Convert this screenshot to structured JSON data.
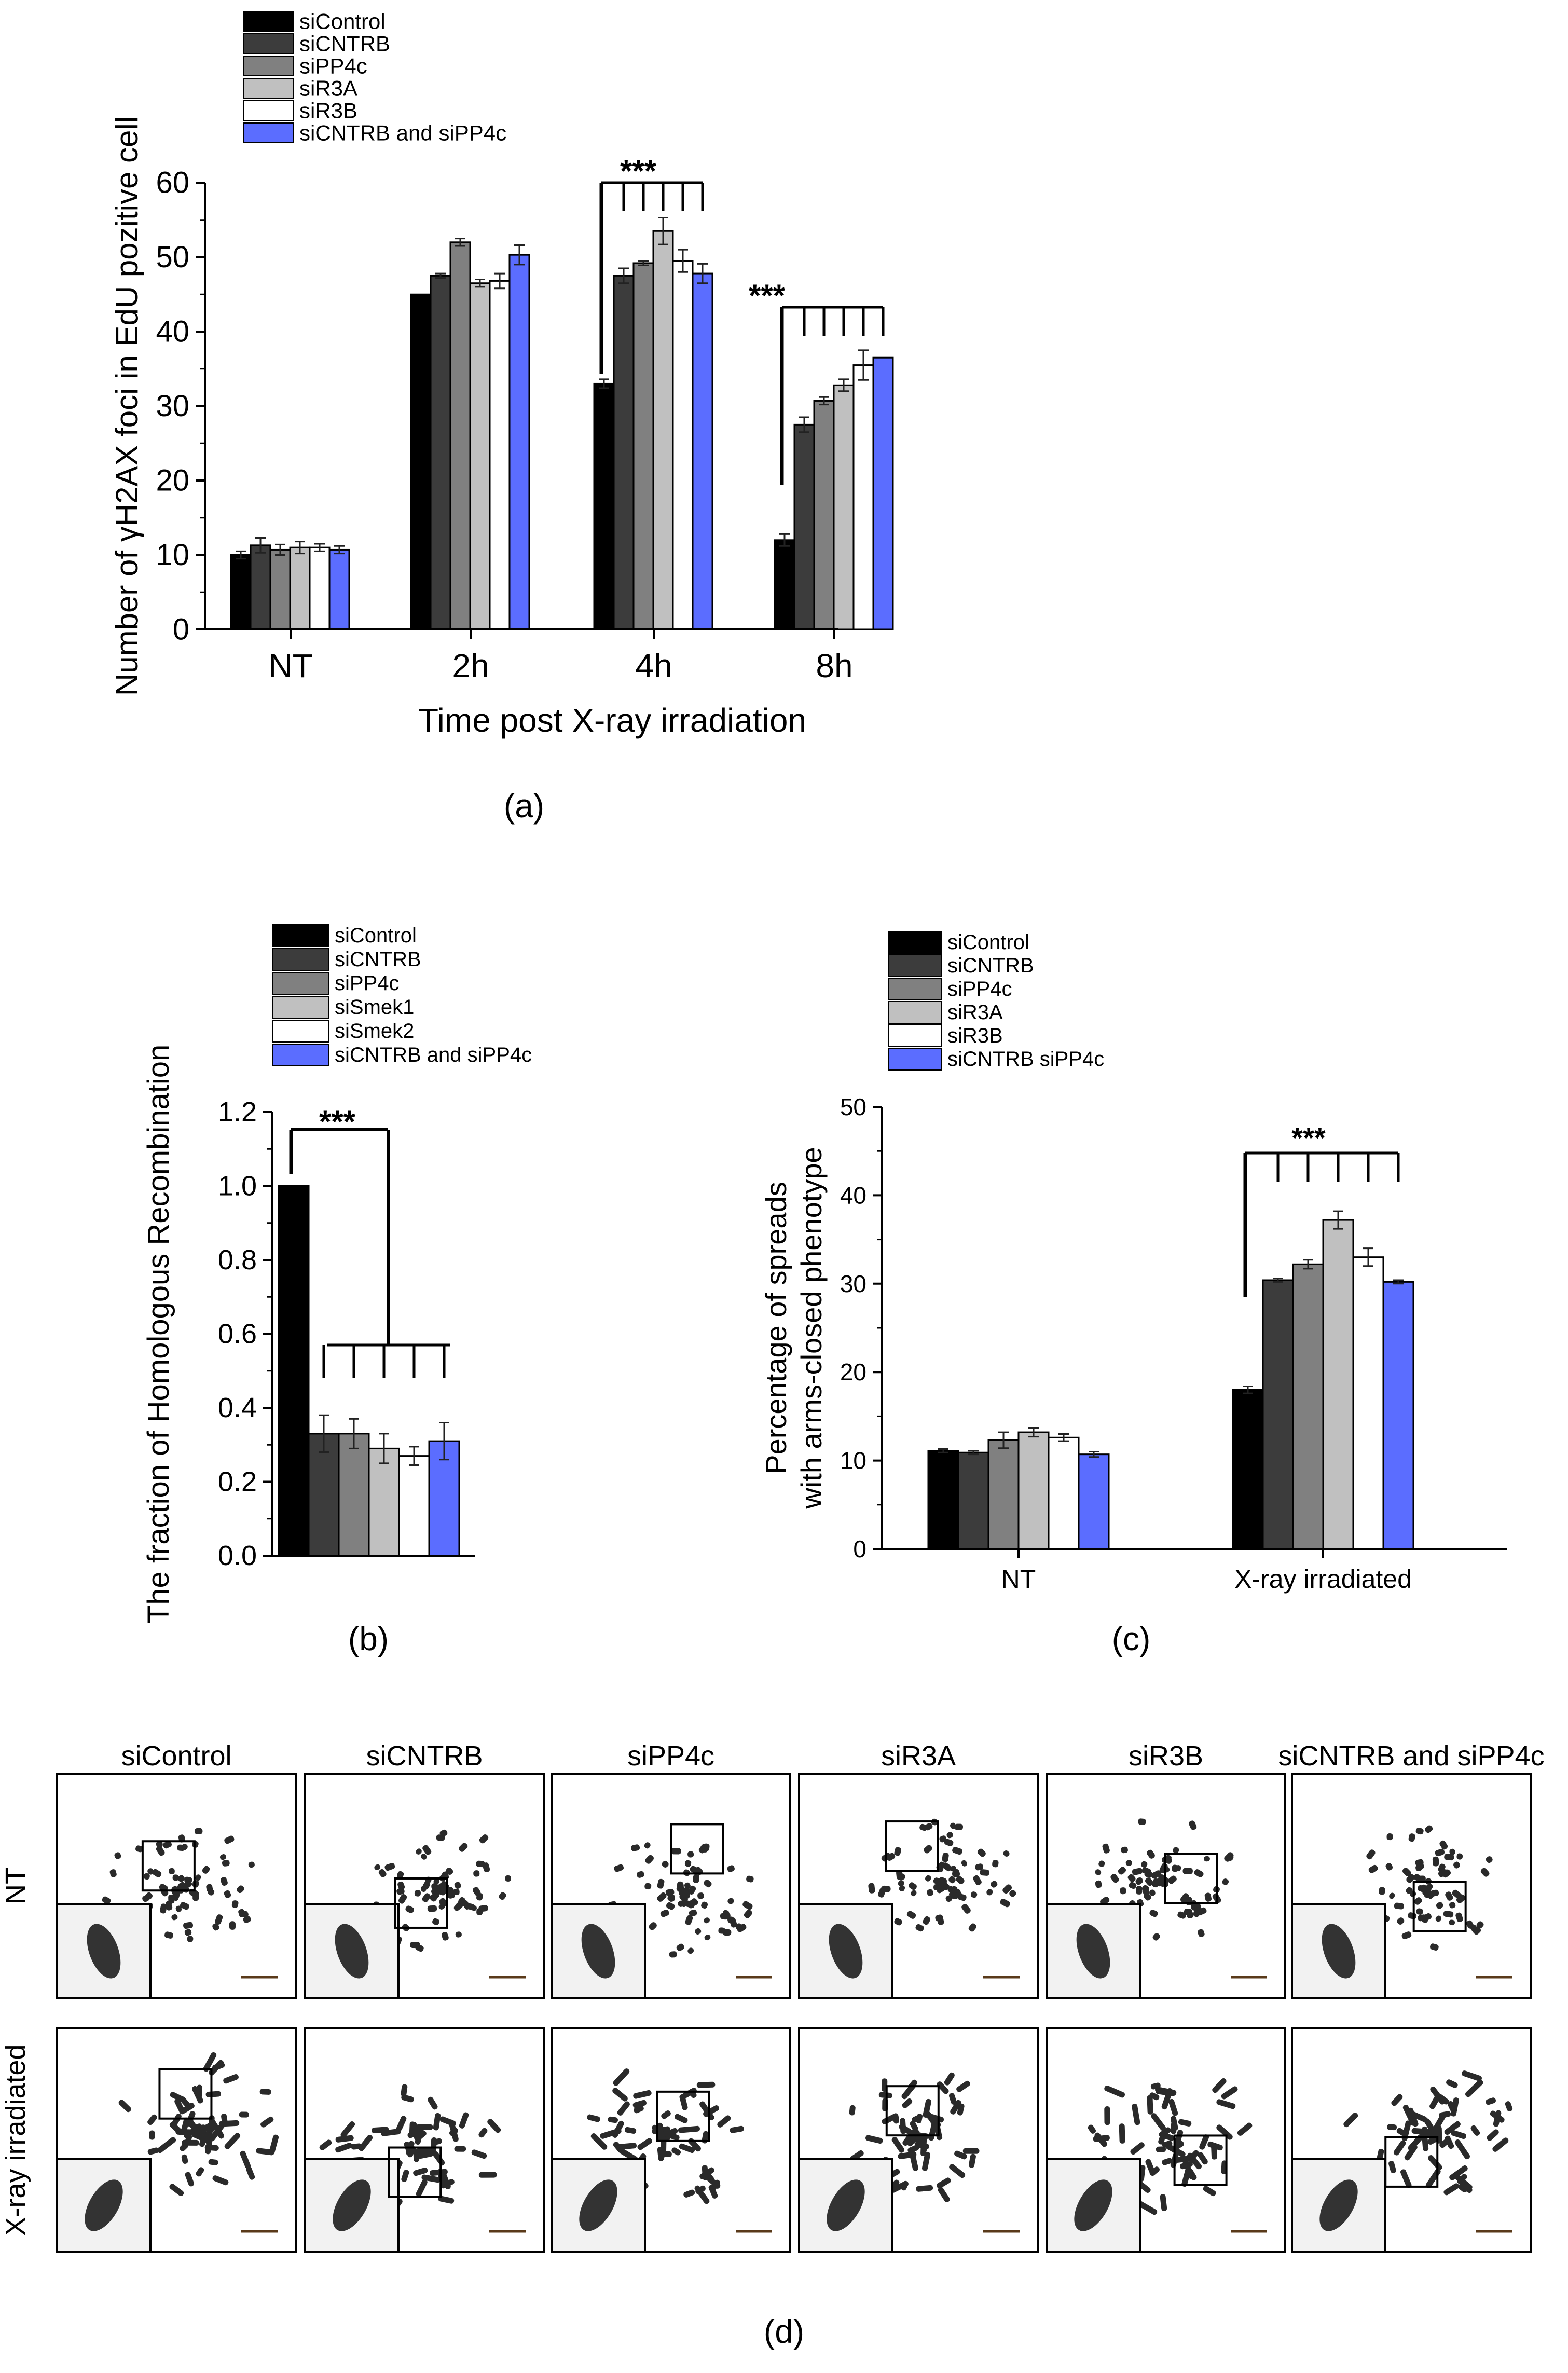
{
  "colors": {
    "siControl": "#000000",
    "siCNTRB": "#3c3c3c",
    "siPP4c": "#808080",
    "siR3A": "#c0c0c0",
    "siR3B": "#ffffff",
    "combo": "#5b6dff"
  },
  "chart_data": [
    {
      "panel_label": "(a)",
      "type": "bar",
      "xlabel": "Time post X-ray irradiation",
      "ylabel": "Number of γH2AX foci in EdU pozitive cell",
      "ylim": [
        0,
        60
      ],
      "yticks": [
        "0",
        "10",
        "20",
        "30",
        "40",
        "50",
        "60"
      ],
      "categories": [
        "NT",
        "2h",
        "4h",
        "8h"
      ],
      "legend": [
        "siControl",
        "siCNTRB",
        "siPP4c",
        "siR3A",
        "siR3B",
        "siCNTRB and siPP4c"
      ],
      "series": [
        {
          "name": "siControl",
          "values": [
            10,
            45,
            33,
            12
          ],
          "errors": [
            0.5,
            0,
            0.6,
            0.8
          ]
        },
        {
          "name": "siCNTRB",
          "values": [
            11.3,
            47.5,
            47.5,
            27.5
          ],
          "errors": [
            1,
            0.3,
            1,
            1
          ]
        },
        {
          "name": "siPP4c",
          "values": [
            10.7,
            52,
            49.2,
            30.7
          ],
          "errors": [
            0.7,
            0.5,
            0.3,
            0.5
          ]
        },
        {
          "name": "siR3A",
          "values": [
            11,
            46.5,
            53.5,
            32.8
          ],
          "errors": [
            0.8,
            0.5,
            1.8,
            0.8
          ]
        },
        {
          "name": "siR3B",
          "values": [
            11,
            46.8,
            49.5,
            35.5
          ],
          "errors": [
            0.5,
            1,
            1.5,
            2
          ]
        },
        {
          "name": "siCNTRB and siPP4c",
          "values": [
            10.7,
            50.3,
            47.8,
            36.5
          ],
          "errors": [
            0.5,
            1.3,
            1.3,
            0
          ]
        }
      ],
      "annotations": [
        {
          "text": "***",
          "category": "4h"
        },
        {
          "text": "***",
          "category": "8h"
        }
      ]
    },
    {
      "panel_label": "(b)",
      "type": "bar",
      "xlabel": "",
      "ylabel": "The fraction of Homologous Recombination",
      "ylim": [
        0,
        1.2
      ],
      "yticks": [
        "0.0",
        "0.2",
        "0.4",
        "0.6",
        "0.8",
        "1.0",
        "1.2"
      ],
      "categories": [
        ""
      ],
      "legend": [
        "siControl",
        "siCNTRB",
        "siPP4c",
        "siSmek1",
        "siSmek2",
        "siCNTRB and siPP4c"
      ],
      "series": [
        {
          "name": "siControl",
          "values": [
            1.0
          ],
          "errors": [
            0
          ]
        },
        {
          "name": "siCNTRB",
          "values": [
            0.33
          ],
          "errors": [
            0.05
          ]
        },
        {
          "name": "siPP4c",
          "values": [
            0.33
          ],
          "errors": [
            0.04
          ]
        },
        {
          "name": "siSmek1",
          "values": [
            0.29
          ],
          "errors": [
            0.04
          ]
        },
        {
          "name": "siSmek2",
          "values": [
            0.27
          ],
          "errors": [
            0.025
          ]
        },
        {
          "name": "siCNTRB and siPP4c",
          "values": [
            0.31
          ],
          "errors": [
            0.05
          ]
        }
      ],
      "annotations": [
        {
          "text": "***"
        }
      ]
    },
    {
      "panel_label": "(c)",
      "type": "bar",
      "xlabel": "",
      "ylabel": [
        "Percentage of spreads",
        "with arms-closed phenotype"
      ],
      "ylim": [
        0,
        50
      ],
      "yticks": [
        "0",
        "10",
        "20",
        "30",
        "40",
        "50"
      ],
      "categories": [
        "NT",
        "X-ray irradiated"
      ],
      "legend": [
        "siControl",
        "siCNTRB",
        "siPP4c",
        "siR3A",
        "siR3B",
        "siCNTRB siPP4c"
      ],
      "series": [
        {
          "name": "siControl",
          "values": [
            11.1,
            18
          ],
          "errors": [
            0.2,
            0.4
          ]
        },
        {
          "name": "siCNTRB",
          "values": [
            10.9,
            30.4
          ],
          "errors": [
            0.2,
            0.2
          ]
        },
        {
          "name": "siPP4c",
          "values": [
            12.3,
            32.2
          ],
          "errors": [
            0.9,
            0.5
          ]
        },
        {
          "name": "siR3A",
          "values": [
            13.2,
            37.2
          ],
          "errors": [
            0.5,
            1
          ]
        },
        {
          "name": "siR3B",
          "values": [
            12.6,
            33
          ],
          "errors": [
            0.4,
            1
          ]
        },
        {
          "name": "siCNTRB siPP4c",
          "values": [
            10.7,
            30.2
          ],
          "errors": [
            0.3,
            0.2
          ]
        }
      ],
      "annotations": [
        {
          "text": "***",
          "category": "X-ray irradiated"
        }
      ]
    }
  ],
  "panel_d": {
    "label": "(d)",
    "columns": [
      "siControl",
      "siCNTRB",
      "siPP4c",
      "siR3A",
      "siR3B",
      "siCNTRB and siPP4c"
    ],
    "rows": [
      "NT",
      "X-ray irradiated"
    ]
  }
}
